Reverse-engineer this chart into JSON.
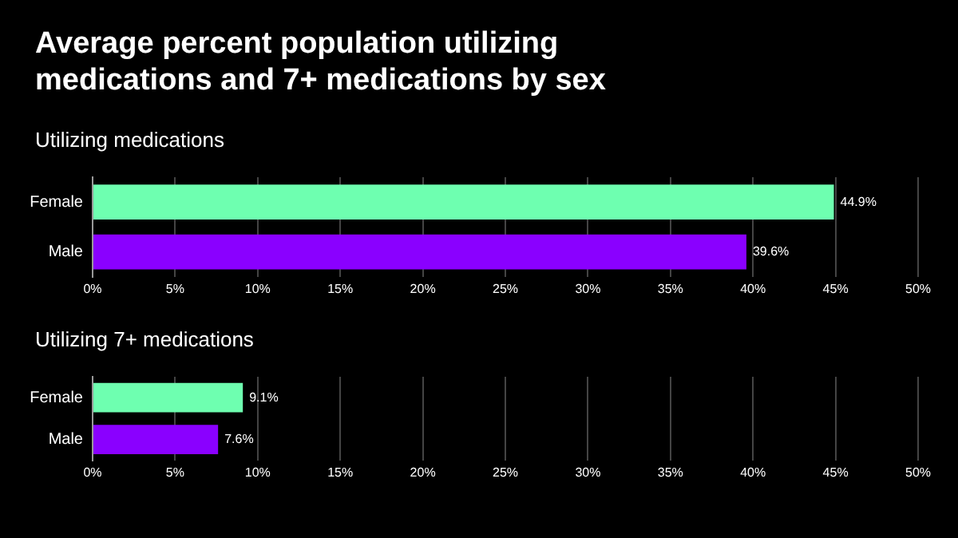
{
  "chart_data": [
    {
      "type": "bar",
      "orientation": "horizontal",
      "title": "Average percent population utilizing medications and 7+ medications by sex",
      "subtitle": "Utilizing medications",
      "categories": [
        "Female",
        "Male"
      ],
      "values": [
        44.9,
        39.6
      ],
      "colors": [
        "#6effb0",
        "#8a00ff"
      ],
      "value_labels": [
        "44.9%",
        "39.6%"
      ],
      "xlim": [
        0,
        50
      ],
      "xticks": [
        {
          "value": 0,
          "label": "0%"
        },
        {
          "value": 5,
          "label": "5%"
        },
        {
          "value": 10,
          "label": "10%"
        },
        {
          "value": 15,
          "label": "15%"
        },
        {
          "value": 20,
          "label": "20%"
        },
        {
          "value": 25,
          "label": "25%"
        },
        {
          "value": 30,
          "label": "30%"
        },
        {
          "value": 35,
          "label": "35%"
        },
        {
          "value": 40,
          "label": "40%"
        },
        {
          "value": 45,
          "label": "45%"
        },
        {
          "value": 50,
          "label": "50%"
        }
      ],
      "grid": "x"
    },
    {
      "type": "bar",
      "orientation": "horizontal",
      "title": "Utilizing 7+ medications",
      "categories": [
        "Female",
        "Male"
      ],
      "values": [
        9.1,
        7.6
      ],
      "colors": [
        "#6effb0",
        "#8a00ff"
      ],
      "value_labels": [
        "9.1%",
        "7.6%"
      ],
      "xlim": [
        0,
        50
      ],
      "xticks": [
        {
          "value": 0,
          "label": "0%"
        },
        {
          "value": 5,
          "label": "5%"
        },
        {
          "value": 10,
          "label": "10%"
        },
        {
          "value": 15,
          "label": "15%"
        },
        {
          "value": 20,
          "label": "20%"
        },
        {
          "value": 25,
          "label": "25%"
        },
        {
          "value": 30,
          "label": "30%"
        },
        {
          "value": 35,
          "label": "35%"
        },
        {
          "value": 40,
          "label": "40%"
        },
        {
          "value": 45,
          "label": "45%"
        },
        {
          "value": 50,
          "label": "50%"
        }
      ],
      "grid": "x"
    }
  ]
}
